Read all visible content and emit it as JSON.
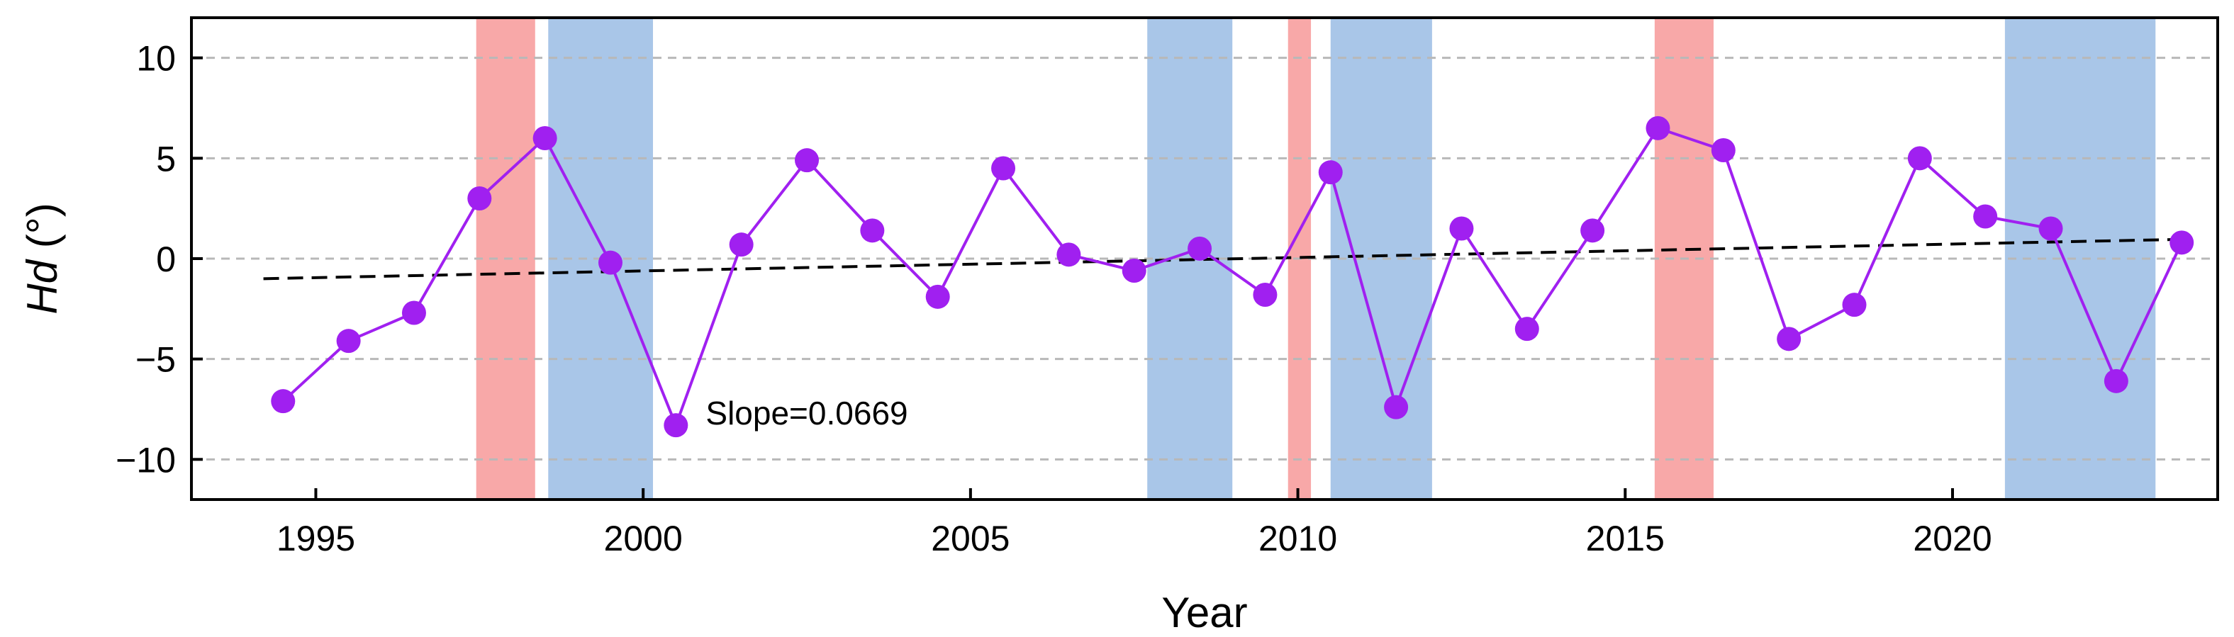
{
  "chart_data": {
    "type": "line",
    "xlabel": "Year",
    "ylabel_var": "Hd",
    "ylabel_unit": " (°)",
    "xlim": [
      1993.1,
      2024.05
    ],
    "ylim": [
      -12,
      12
    ],
    "x_ticks": [
      1995,
      2000,
      2005,
      2010,
      2015,
      2020
    ],
    "y_ticks": [
      10,
      5,
      0,
      -5,
      -10
    ],
    "y_tick_labels": [
      "10",
      "5",
      "0",
      "−5",
      "−10"
    ],
    "grid": "horizontal dashed",
    "colors": {
      "series": "#a020f0",
      "trend": "#000000",
      "red_band": "#f8a8a8",
      "blue_band": "#a9c6e8",
      "grid": "#b8b8b8"
    },
    "series": [
      {
        "x": [
          1994.5,
          1995.5,
          1996.5,
          1997.5,
          1998.5,
          1999.5,
          2000.5,
          2001.5,
          2002.5,
          2003.5,
          2004.5,
          2005.5,
          2006.5,
          2007.5,
          2008.5,
          2009.5,
          2010.5,
          2011.5,
          2012.5,
          2013.5,
          2014.5,
          2015.5,
          2016.5,
          2017.5,
          2018.5,
          2019.5,
          2020.5,
          2021.5,
          2022.5,
          2023.5
        ],
        "values": [
          -7.1,
          -4.1,
          -2.7,
          3.0,
          6.0,
          -0.2,
          -8.3,
          0.7,
          4.9,
          1.4,
          -1.9,
          4.5,
          0.2,
          -0.6,
          0.5,
          -1.8,
          4.3,
          -7.4,
          1.5,
          -3.5,
          1.4,
          6.5,
          5.4,
          -4.0,
          -2.3,
          5.0,
          2.1,
          1.5,
          -6.1,
          0.8
        ]
      }
    ],
    "trend": {
      "x": [
        1994.2,
        2023.5
      ],
      "y": [
        -1.0,
        0.96
      ],
      "label": "Slope=0.0669",
      "label_x": 2002.5,
      "label_y": -7.7
    },
    "bands": [
      {
        "color": "red",
        "x0": 1997.45,
        "x1": 1998.35
      },
      {
        "color": "blue",
        "x0": 1998.55,
        "x1": 2000.15
      },
      {
        "color": "blue",
        "x0": 2007.7,
        "x1": 2009.0
      },
      {
        "color": "red",
        "x0": 2009.85,
        "x1": 2010.2
      },
      {
        "color": "blue",
        "x0": 2010.5,
        "x1": 2012.05
      },
      {
        "color": "red",
        "x0": 2015.45,
        "x1": 2016.35
      },
      {
        "color": "blue",
        "x0": 2020.8,
        "x1": 2023.1
      }
    ]
  }
}
